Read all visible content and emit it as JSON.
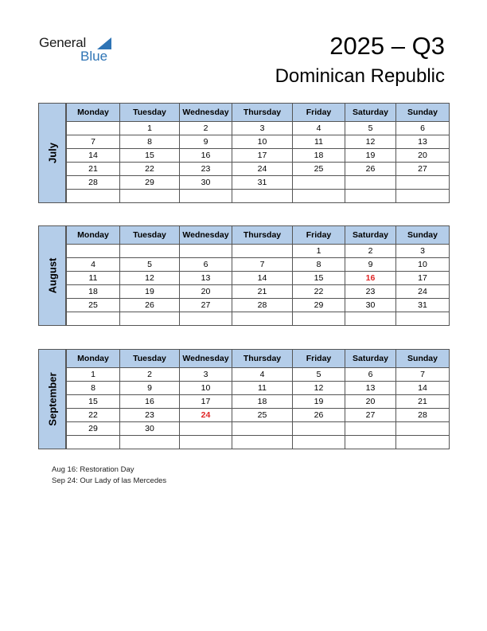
{
  "logo": {
    "word1": "General",
    "word2": "Blue"
  },
  "header": {
    "title": "2025 – Q3",
    "country": "Dominican Republic"
  },
  "weekdays": [
    "Monday",
    "Tuesday",
    "Wednesday",
    "Thursday",
    "Friday",
    "Saturday",
    "Sunday"
  ],
  "months": [
    {
      "name": "July",
      "weeks": [
        [
          "",
          "1",
          "2",
          "3",
          "4",
          "5",
          "6"
        ],
        [
          "7",
          "8",
          "9",
          "10",
          "11",
          "12",
          "13"
        ],
        [
          "14",
          "15",
          "16",
          "17",
          "18",
          "19",
          "20"
        ],
        [
          "21",
          "22",
          "23",
          "24",
          "25",
          "26",
          "27"
        ],
        [
          "28",
          "29",
          "30",
          "31",
          "",
          "",
          ""
        ],
        [
          "",
          "",
          "",
          "",
          "",
          "",
          ""
        ]
      ],
      "holidays": []
    },
    {
      "name": "August",
      "weeks": [
        [
          "",
          "",
          "",
          "",
          "1",
          "2",
          "3"
        ],
        [
          "4",
          "5",
          "6",
          "7",
          "8",
          "9",
          "10"
        ],
        [
          "11",
          "12",
          "13",
          "14",
          "15",
          "16",
          "17"
        ],
        [
          "18",
          "19",
          "20",
          "21",
          "22",
          "23",
          "24"
        ],
        [
          "25",
          "26",
          "27",
          "28",
          "29",
          "30",
          "31"
        ],
        [
          "",
          "",
          "",
          "",
          "",
          "",
          ""
        ]
      ],
      "holidays": [
        "16"
      ]
    },
    {
      "name": "September",
      "weeks": [
        [
          "1",
          "2",
          "3",
          "4",
          "5",
          "6",
          "7"
        ],
        [
          "8",
          "9",
          "10",
          "11",
          "12",
          "13",
          "14"
        ],
        [
          "15",
          "16",
          "17",
          "18",
          "19",
          "20",
          "21"
        ],
        [
          "22",
          "23",
          "24",
          "25",
          "26",
          "27",
          "28"
        ],
        [
          "29",
          "30",
          "",
          "",
          "",
          "",
          ""
        ],
        [
          "",
          "",
          "",
          "",
          "",
          "",
          ""
        ]
      ],
      "holidays": [
        "24"
      ]
    }
  ],
  "notes": [
    "Aug 16: Restoration Day",
    "Sep 24: Our Lady of las Mercedes"
  ],
  "colors": {
    "header_fill": "#b4cde9",
    "holiday": "#e02424",
    "brand": "#2e74b5"
  }
}
